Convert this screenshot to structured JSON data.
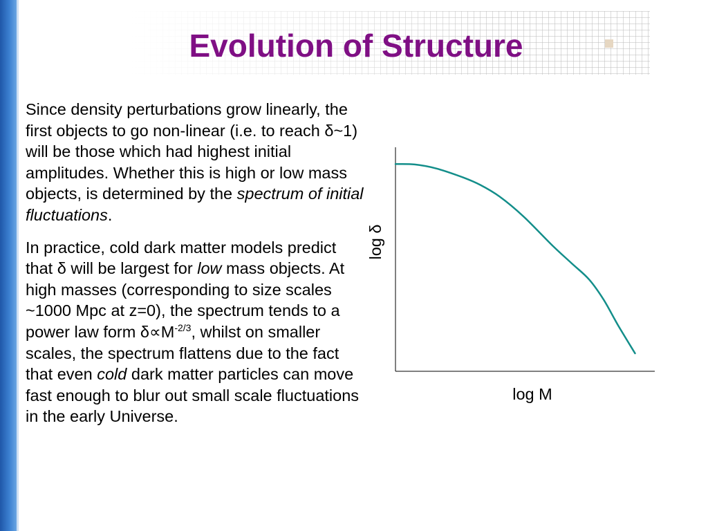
{
  "slide": {
    "title": "Evolution of Structure",
    "paragraph1": {
      "p1_a": "Since density perturbations grow linearly, the first objects to go non-linear (i.e. to reach ",
      "delta": "δ",
      "p1_b": "~1) will be those which had highest initial amplitudes. Whether this is high or low mass objects, is determined by the ",
      "p1_emph": "spectrum of initial fluctuations",
      "p1_c": "."
    },
    "paragraph2": {
      "p2_a": "In practice, cold dark matter models predict that ",
      "delta1": "δ",
      "p2_b": " will be largest for ",
      "p2_emph1": "low",
      "p2_c": " mass objects. At high masses (corresponding to size scales ~1000 Mpc at z=0), the spectrum tends to a power law form ",
      "delta2": "δ",
      "propto": "∝",
      "p2_d": "M",
      "exponent": "-2/3",
      "p2_e": ", whilst on smaller scales, the spectrum flattens due to the fact that even ",
      "p2_emph2": "cold",
      "p2_f": " dark matter particles can move fast enough to blur out small scale fluctuations in the early Universe."
    }
  },
  "chart_data": {
    "type": "line",
    "xlabel": "log M",
    "ylabel": "log δ",
    "line_color": "#138e8a",
    "curve": [
      {
        "x": 0.0,
        "y": 0.925
      },
      {
        "x": 0.08,
        "y": 0.923
      },
      {
        "x": 0.17,
        "y": 0.905
      },
      {
        "x": 0.28,
        "y": 0.865
      },
      {
        "x": 0.35,
        "y": 0.832
      },
      {
        "x": 0.43,
        "y": 0.78
      },
      {
        "x": 0.53,
        "y": 0.69
      },
      {
        "x": 0.65,
        "y": 0.56
      },
      {
        "x": 0.73,
        "y": 0.48
      },
      {
        "x": 0.8,
        "y": 0.41
      },
      {
        "x": 0.86,
        "y": 0.32
      },
      {
        "x": 0.92,
        "y": 0.205
      },
      {
        "x": 0.99,
        "y": 0.08
      }
    ]
  }
}
